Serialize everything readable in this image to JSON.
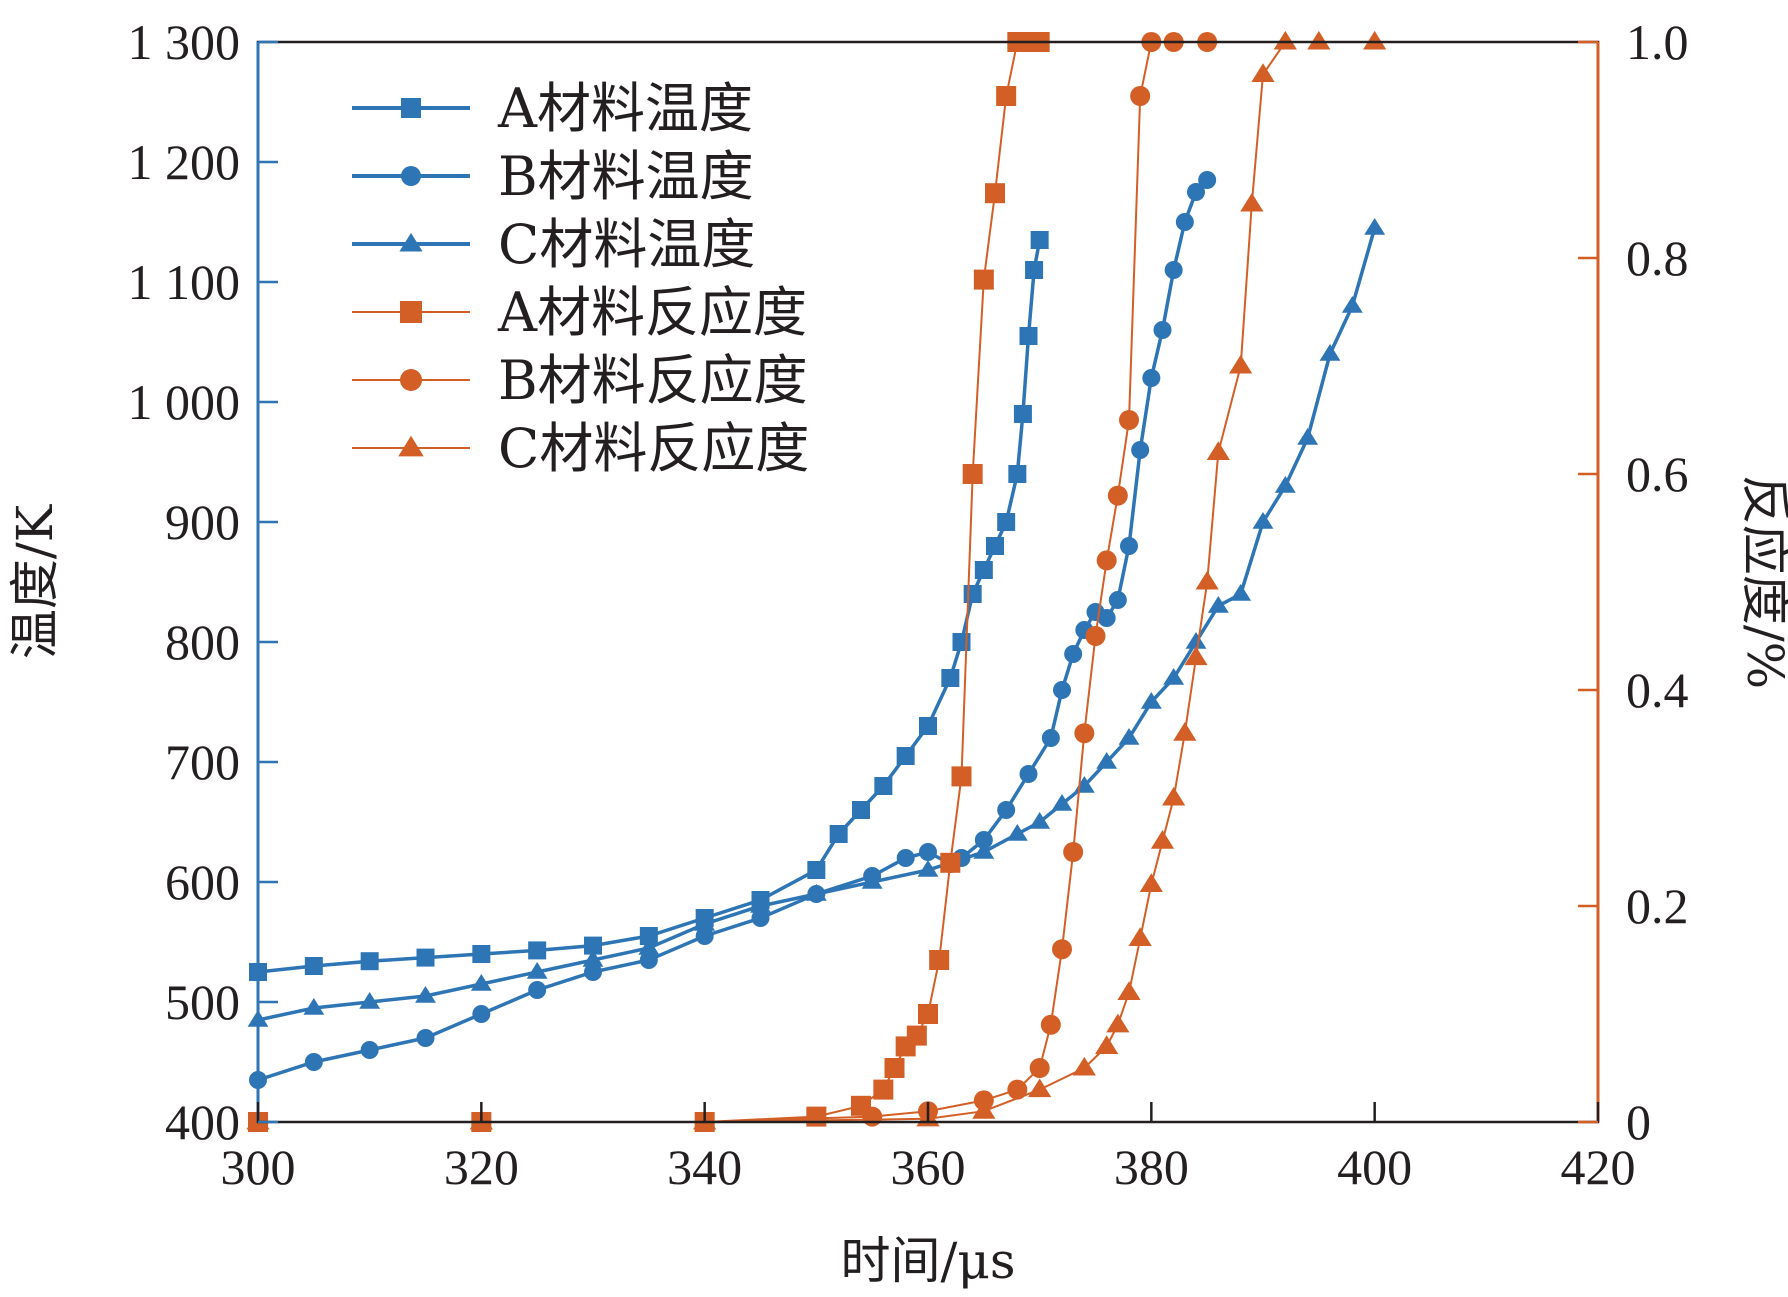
{
  "chart_data": {
    "type": "line",
    "xlabel": "时间/μs",
    "ylabel": "温度/K",
    "y2label": "反应度/%",
    "xlim": [
      300,
      420
    ],
    "ylim": [
      400,
      1300
    ],
    "y2lim": [
      0,
      1.0
    ],
    "x_ticks": [
      "300",
      "320",
      "340",
      "360",
      "380",
      "400",
      "420"
    ],
    "y_ticks": [
      "400",
      "500",
      "600",
      "700",
      "800",
      "900",
      "1 000",
      "1 100",
      "1 200",
      "1 300"
    ],
    "y2_ticks": [
      "0",
      "0.2",
      "0.4",
      "0.6",
      "0.8",
      "1.0"
    ],
    "grid": false,
    "legend_position": "top-left",
    "colors": {
      "temperature": "#2e75b6",
      "reactivity": "#d35f26",
      "axis": "#231f20"
    },
    "series": [
      {
        "name": "A材料温度",
        "axis": "left",
        "marker": "square",
        "x": [
          300,
          305,
          310,
          315,
          320,
          325,
          330,
          335,
          340,
          345,
          350,
          352,
          354,
          356,
          358,
          360,
          362,
          363,
          364,
          365,
          366,
          367,
          368,
          368.5,
          369,
          369.5,
          370
        ],
        "y": [
          525,
          530,
          534,
          537,
          540,
          543,
          547,
          555,
          570,
          585,
          610,
          640,
          660,
          680,
          705,
          730,
          770,
          800,
          840,
          860,
          880,
          900,
          940,
          990,
          1055,
          1110,
          1135
        ]
      },
      {
        "name": "B材料温度",
        "axis": "left",
        "marker": "circle",
        "x": [
          300,
          305,
          310,
          315,
          320,
          325,
          330,
          335,
          340,
          345,
          350,
          355,
          358,
          360,
          362,
          363,
          365,
          367,
          369,
          371,
          372,
          373,
          374,
          375,
          376,
          377,
          378,
          379,
          380,
          381,
          382,
          383,
          384,
          385
        ],
        "y": [
          435,
          450,
          460,
          470,
          490,
          510,
          525,
          535,
          555,
          570,
          590,
          605,
          620,
          625,
          615,
          620,
          635,
          660,
          690,
          720,
          760,
          790,
          810,
          825,
          820,
          835,
          880,
          960,
          1020,
          1060,
          1110,
          1150,
          1175,
          1185
        ]
      },
      {
        "name": "C材料温度",
        "axis": "left",
        "marker": "triangle",
        "x": [
          300,
          305,
          310,
          315,
          320,
          325,
          330,
          335,
          340,
          345,
          350,
          355,
          360,
          365,
          368,
          370,
          372,
          374,
          376,
          378,
          380,
          382,
          384,
          386,
          388,
          390,
          392,
          394,
          396,
          398,
          400
        ],
        "y": [
          485,
          495,
          500,
          505,
          515,
          525,
          535,
          545,
          565,
          580,
          590,
          600,
          610,
          625,
          640,
          650,
          665,
          680,
          700,
          720,
          750,
          770,
          800,
          830,
          840,
          900,
          930,
          970,
          1040,
          1080,
          1145
        ]
      },
      {
        "name": "A材料反应度",
        "axis": "right",
        "marker": "square",
        "x": [
          300,
          320,
          340,
          350,
          354,
          356,
          357,
          358,
          359,
          360,
          361,
          362,
          363,
          364,
          365,
          366,
          367,
          368,
          369,
          370
        ],
        "y": [
          0.0,
          0.0,
          0.0,
          0.005,
          0.015,
          0.03,
          0.05,
          0.07,
          0.08,
          0.1,
          0.15,
          0.24,
          0.32,
          0.6,
          0.78,
          0.86,
          0.95,
          1.0,
          1.0,
          1.0
        ]
      },
      {
        "name": "B材料反应度",
        "axis": "right",
        "marker": "circle",
        "x": [
          300,
          320,
          340,
          355,
          360,
          365,
          368,
          370,
          371,
          372,
          373,
          374,
          375,
          376,
          377,
          378,
          379,
          380,
          382,
          385
        ],
        "y": [
          0.0,
          0.0,
          0.0,
          0.005,
          0.01,
          0.02,
          0.03,
          0.05,
          0.09,
          0.16,
          0.25,
          0.36,
          0.45,
          0.52,
          0.58,
          0.65,
          0.95,
          1.0,
          1.0,
          1.0
        ]
      },
      {
        "name": "C材料反应度",
        "axis": "right",
        "marker": "triangle",
        "x": [
          300,
          320,
          340,
          360,
          365,
          370,
          374,
          376,
          377,
          378,
          379,
          380,
          381,
          382,
          383,
          384,
          385,
          386,
          388,
          389,
          390,
          392,
          395,
          400
        ],
        "y": [
          0.0,
          0.0,
          0.0,
          0.003,
          0.01,
          0.03,
          0.05,
          0.07,
          0.09,
          0.12,
          0.17,
          0.22,
          0.26,
          0.3,
          0.36,
          0.43,
          0.5,
          0.62,
          0.7,
          0.85,
          0.97,
          1.0,
          1.0,
          1.0
        ]
      }
    ]
  }
}
